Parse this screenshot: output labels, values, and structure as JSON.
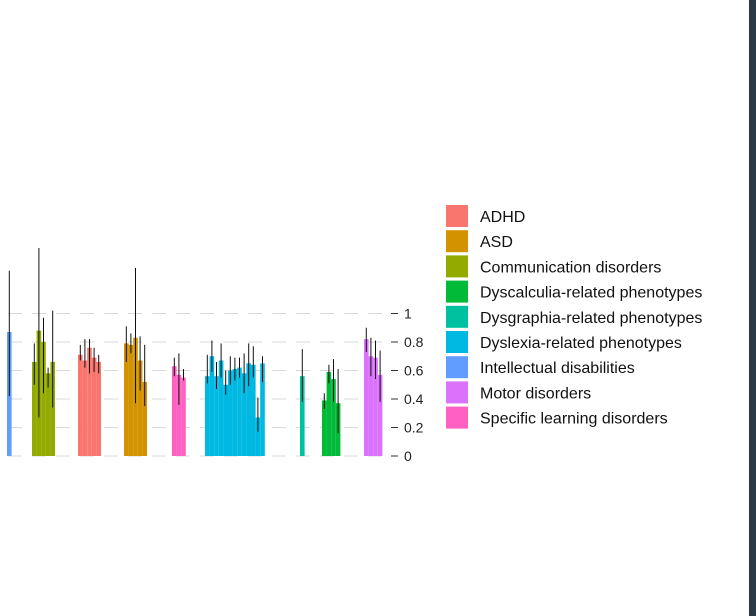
{
  "chart_data": {
    "type": "bar",
    "title": "",
    "xlabel": "",
    "ylabel": "",
    "ylim": [
      0,
      1
    ],
    "y_axis_side": "right",
    "y_ticks": [
      0,
      0.2,
      0.4,
      0.6,
      0.8,
      1
    ],
    "y_tick_labels": [
      "0",
      "0.2",
      "0.4",
      "0.6",
      "0.8",
      "1"
    ],
    "grid": "dashed horizontal",
    "legend_position": "right",
    "series": [
      {
        "name": "Intellectual disabilities",
        "color": "#619CFF",
        "values": [
          0.87
        ],
        "errors": [
          [
            0.42,
            1.3
          ]
        ]
      },
      {
        "name": "Communication disorders",
        "color": "#93AA00",
        "values": [
          0.66,
          0.88,
          0.8,
          0.58,
          0.66
        ],
        "errors": [
          [
            0.5,
            0.79
          ],
          [
            0.27,
            1.46
          ],
          [
            0.44,
            0.97
          ],
          [
            0.48,
            0.62
          ],
          [
            0.34,
            1.02
          ]
        ]
      },
      {
        "name": "ADHD",
        "color": "#F8766D",
        "values": [
          0.71,
          0.67,
          0.76,
          0.69,
          0.66
        ],
        "errors": [
          [
            0.67,
            0.78
          ],
          [
            0.62,
            0.82
          ],
          [
            0.58,
            0.82
          ],
          [
            0.59,
            0.76
          ],
          [
            0.58,
            0.71
          ]
        ]
      },
      {
        "name": "ASD",
        "color": "#D39200",
        "values": [
          0.79,
          0.78,
          0.83,
          0.67,
          0.52
        ],
        "errors": [
          [
            0.66,
            0.91
          ],
          [
            0.72,
            0.86
          ],
          [
            0.37,
            1.32
          ],
          [
            0.46,
            0.84
          ],
          [
            0.35,
            0.78
          ]
        ]
      },
      {
        "name": "Specific learning disorders",
        "color": "#FF61C3",
        "values": [
          0.63,
          0.57,
          0.55
        ],
        "errors": [
          [
            0.56,
            0.69
          ],
          [
            0.36,
            0.72
          ],
          [
            0.53,
            0.61
          ]
        ]
      },
      {
        "name": "Dyslexia-related phenotypes",
        "color": "#00B9E3",
        "values": [
          0.56,
          0.7,
          0.56,
          0.67,
          0.5,
          0.6,
          0.61,
          0.62,
          0.58,
          0.65,
          0.64,
          0.27,
          0.65
        ],
        "errors": [
          [
            0.51,
            0.71
          ],
          [
            0.59,
            0.81
          ],
          [
            0.47,
            0.66
          ],
          [
            0.55,
            0.79
          ],
          [
            0.43,
            0.6
          ],
          [
            0.5,
            0.7
          ],
          [
            0.53,
            0.69
          ],
          [
            0.55,
            0.69
          ],
          [
            0.44,
            0.72
          ],
          [
            0.49,
            0.79
          ],
          [
            0.55,
            0.77
          ],
          [
            0.17,
            0.41
          ],
          [
            0.52,
            0.7
          ]
        ]
      },
      {
        "name": "Dysgraphia-related phenotypes",
        "color": "#00C19F",
        "values": [
          0.56
        ],
        "errors": [
          [
            0.38,
            0.75
          ]
        ]
      },
      {
        "name": "Dyscalculia-related phenotypes",
        "color": "#00BA38",
        "values": [
          0.39,
          0.59,
          0.54,
          0.37
        ],
        "errors": [
          [
            0.33,
            0.44
          ],
          [
            0.51,
            0.64
          ],
          [
            0.38,
            0.68
          ],
          [
            0.16,
            0.61
          ]
        ]
      },
      {
        "name": "Motor disorders",
        "color": "#DB72FB",
        "values": [
          0.82,
          0.7,
          0.69,
          0.57
        ],
        "errors": [
          [
            0.73,
            0.9
          ],
          [
            0.56,
            0.83
          ],
          [
            0.54,
            0.81
          ],
          [
            0.38,
            0.74
          ]
        ]
      }
    ],
    "legend": [
      {
        "label": "ADHD",
        "color": "#F8766D"
      },
      {
        "label": "ASD",
        "color": "#D39200"
      },
      {
        "label": "Communication disorders",
        "color": "#93AA00"
      },
      {
        "label": "Dyscalculia-related phenotypes",
        "color": "#00BA38"
      },
      {
        "label": "Dysgraphia-related phenotypes",
        "color": "#00C19F"
      },
      {
        "label": "Dyslexia-related phenotypes",
        "color": "#00B9E3"
      },
      {
        "label": "Intellectual disabilities",
        "color": "#619CFF"
      },
      {
        "label": "Motor disorders",
        "color": "#DB72FB"
      },
      {
        "label": "Specific learning disorders",
        "color": "#FF61C3"
      }
    ]
  }
}
